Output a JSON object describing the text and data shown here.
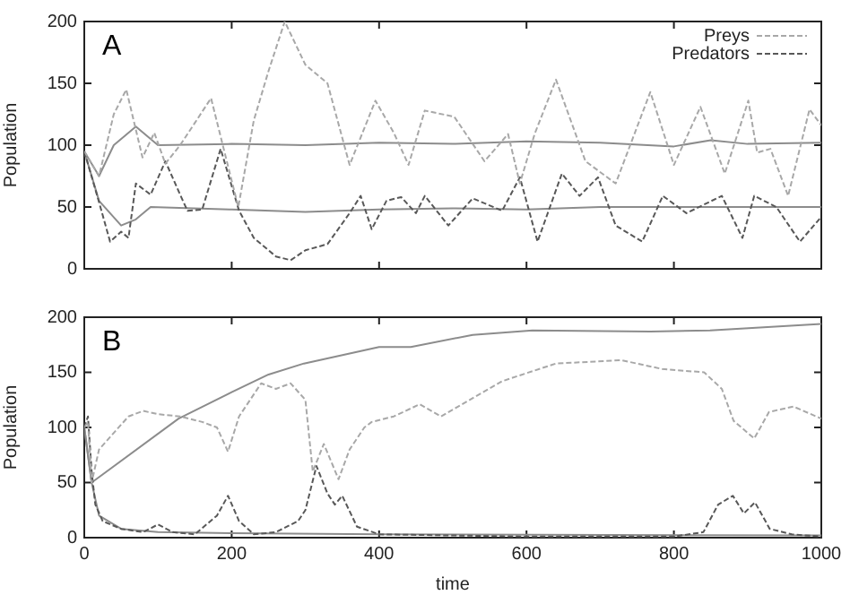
{
  "chart_data": [
    {
      "type": "line",
      "title": "A",
      "ylabel": "Population",
      "xlim": [
        0,
        1000
      ],
      "xticks": [
        0,
        200,
        400,
        600,
        800,
        1000
      ],
      "ylim": [
        0,
        200
      ],
      "yticks": [
        0,
        50,
        100,
        150,
        200
      ],
      "grid": false,
      "legend": "top right",
      "marker": "none",
      "tick_labels": "y",
      "series": [
        {
          "name": "Preys",
          "color": "#a8a8a8",
          "line_style": "dashed",
          "x": [
            0,
            20,
            40,
            57,
            79,
            95,
            110,
            130,
            150,
            172,
            190,
            209,
            230,
            250,
            272,
            300,
            330,
            360,
            395,
            420,
            440,
            462,
            502,
            543,
            575,
            591,
            611,
            640,
            680,
            721,
            768,
            800,
            836,
            869,
            901,
            913,
            931,
            955,
            984,
            1000
          ],
          "values": [
            95,
            75,
            125,
            145,
            90,
            110,
            85,
            100,
            118,
            138,
            95,
            50,
            120,
            160,
            200,
            165,
            150,
            84,
            136,
            110,
            84,
            128,
            123,
            87,
            109,
            69,
            109,
            153,
            87,
            69,
            143,
            84,
            131,
            77,
            136,
            94,
            97,
            59,
            129,
            116
          ]
        },
        {
          "name": "Predators",
          "color": "#585858",
          "line_style": "dashed",
          "x": [
            0,
            20,
            35,
            50,
            60,
            70,
            90,
            110,
            130,
            140,
            160,
            185,
            210,
            230,
            260,
            280,
            300,
            330,
            360,
            375,
            390,
            410,
            430,
            450,
            462,
            494,
            527,
            567,
            591,
            615,
            648,
            672,
            697,
            721,
            757,
            785,
            817,
            865,
            893,
            909,
            939,
            971,
            1000
          ],
          "values": [
            95,
            54,
            22,
            30,
            25,
            69,
            60,
            87,
            60,
            47,
            48,
            97,
            47,
            25,
            10,
            7,
            15,
            20,
            45,
            59,
            32,
            55,
            58,
            45,
            59,
            35,
            57,
            47,
            74,
            22,
            77,
            59,
            74,
            35,
            22,
            59,
            45,
            59,
            25,
            59,
            50,
            22,
            42
          ]
        },
        {
          "color": "#8c8c8c",
          "line_style": "solid",
          "x": [
            0,
            20,
            40,
            70,
            100,
            200,
            300,
            400,
            500,
            600,
            700,
            800,
            850,
            900,
            1000
          ],
          "values": [
            95,
            75,
            100,
            115,
            100,
            101,
            100,
            102,
            101,
            103,
            102,
            99,
            104,
            101,
            102
          ]
        },
        {
          "color": "#8c8c8c",
          "line_style": "solid",
          "x": [
            0,
            20,
            50,
            70,
            90,
            200,
            300,
            400,
            500,
            600,
            700,
            800,
            900,
            1000
          ],
          "values": [
            95,
            55,
            35,
            40,
            50,
            48,
            46,
            48,
            49,
            48,
            50,
            50,
            50,
            50
          ]
        }
      ]
    },
    {
      "type": "line",
      "title": "B",
      "xlabel": "time",
      "ylabel": "Population",
      "xlim": [
        0,
        1000
      ],
      "xticks": [
        0,
        200,
        400,
        600,
        800,
        1000
      ],
      "ylim": [
        0,
        200
      ],
      "yticks": [
        0,
        50,
        100,
        150,
        200
      ],
      "grid": false,
      "legend": false,
      "marker": "none",
      "series": [
        {
          "color": "#a8a8a8",
          "line_style": "dashed",
          "x": [
            0,
            5,
            10,
            20,
            40,
            60,
            80,
            100,
            130,
            160,
            180,
            195,
            210,
            240,
            260,
            280,
            300,
            310,
            325,
            345,
            360,
            380,
            390,
            420,
            455,
            484,
            567,
            640,
            729,
            784,
            841,
            865,
            881,
            909,
            929,
            962,
            1000
          ],
          "values": [
            100,
            105,
            50,
            80,
            95,
            110,
            115,
            112,
            110,
            105,
            100,
            78,
            110,
            140,
            135,
            140,
            125,
            60,
            85,
            53,
            80,
            100,
            105,
            110,
            121,
            110,
            142,
            158,
            161,
            153,
            150,
            135,
            106,
            90,
            114,
            119,
            108
          ]
        },
        {
          "color": "#585858",
          "line_style": "dashed",
          "x": [
            0,
            5,
            10,
            15,
            25,
            50,
            80,
            100,
            120,
            150,
            180,
            195,
            210,
            230,
            260,
            290,
            300,
            315,
            330,
            340,
            350,
            370,
            400,
            500,
            600,
            800,
            840,
            860,
            880,
            895,
            910,
            930,
            960,
            1000
          ],
          "values": [
            100,
            110,
            60,
            30,
            15,
            8,
            5,
            12,
            5,
            3,
            20,
            38,
            15,
            3,
            5,
            15,
            25,
            65,
            40,
            30,
            38,
            10,
            3,
            2,
            1,
            1,
            5,
            30,
            38,
            22,
            32,
            8,
            3,
            1
          ]
        },
        {
          "color": "#8c8c8c",
          "line_style": "solid",
          "x": [
            0,
            10,
            128,
            200,
            250,
            298,
            400,
            443,
            527,
            608,
            768,
            849,
            1000
          ],
          "values": [
            100,
            50,
            108,
            132,
            148,
            158,
            173,
            173,
            184,
            188,
            187,
            188,
            194
          ]
        },
        {
          "color": "#8c8c8c",
          "line_style": "solid",
          "x": [
            0,
            10,
            20,
            50,
            100,
            200,
            400,
            1000
          ],
          "values": [
            100,
            50,
            20,
            8,
            5,
            4,
            3,
            2
          ]
        }
      ]
    }
  ]
}
